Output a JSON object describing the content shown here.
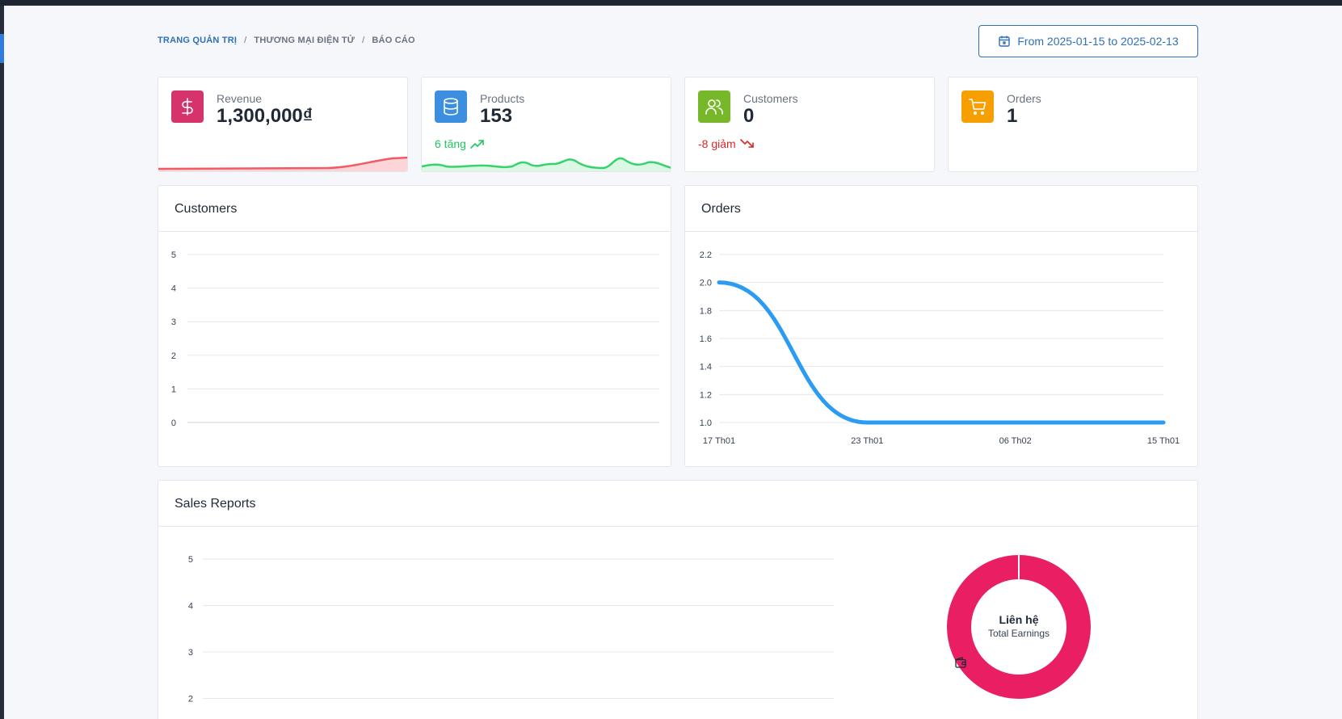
{
  "breadcrumb": {
    "home": "TRANG QUẢN TRỊ",
    "section": "THƯƠNG MẠI ĐIỆN TỬ",
    "current": "BÁO CÁO",
    "separator": "/"
  },
  "date_range": {
    "label": "From 2025-01-15 to 2025-02-13",
    "icon": "calendar-icon"
  },
  "stats": {
    "revenue": {
      "label": "Revenue",
      "value": "1,300,000₫",
      "icon": "dollar-icon",
      "color": "#d6336c"
    },
    "products": {
      "label": "Products",
      "value": "153",
      "trend": "6 tăng",
      "trend_dir": "up",
      "icon": "database-icon",
      "color": "#3b8ee0"
    },
    "customers": {
      "label": "Customers",
      "value": "0",
      "trend": "-8 giảm",
      "trend_dir": "down",
      "icon": "users-icon",
      "color": "#76b82a"
    },
    "orders": {
      "label": "Orders",
      "value": "1",
      "icon": "cart-icon",
      "color": "#f59f00"
    }
  },
  "panels": {
    "customers": {
      "title": "Customers"
    },
    "orders": {
      "title": "Orders"
    },
    "sales": {
      "title": "Sales Reports"
    }
  },
  "donut": {
    "title": "Liên hệ",
    "subtitle": "Total Earnings",
    "icon": "wallet-icon",
    "color": "#e91e63"
  },
  "chart_data": [
    {
      "type": "line",
      "name": "customers-chart",
      "title": "Customers",
      "y_ticks": [
        0,
        1,
        2,
        3,
        4,
        5
      ],
      "ylim": [
        0,
        5
      ],
      "grid": true,
      "series": []
    },
    {
      "type": "line",
      "name": "orders-chart",
      "title": "Orders",
      "x": [
        "17 Th01",
        "23 Th01",
        "06 Th02",
        "15 Th01"
      ],
      "y_ticks": [
        1.0,
        1.2,
        1.4,
        1.6,
        1.8,
        2.0,
        2.2
      ],
      "ylim": [
        1.0,
        2.2
      ],
      "grid": true,
      "color": "#2b9cf2",
      "series": [
        {
          "values": [
            2,
            1,
            1,
            1
          ]
        }
      ]
    },
    {
      "type": "line",
      "name": "sales-chart",
      "title": "Sales Reports",
      "y_ticks": [
        2,
        3,
        4,
        5
      ],
      "grid": true,
      "series": []
    },
    {
      "type": "pie",
      "name": "earnings-donut",
      "categories": [
        "Liên hệ"
      ],
      "values": [
        100
      ],
      "color": "#e91e63"
    }
  ]
}
